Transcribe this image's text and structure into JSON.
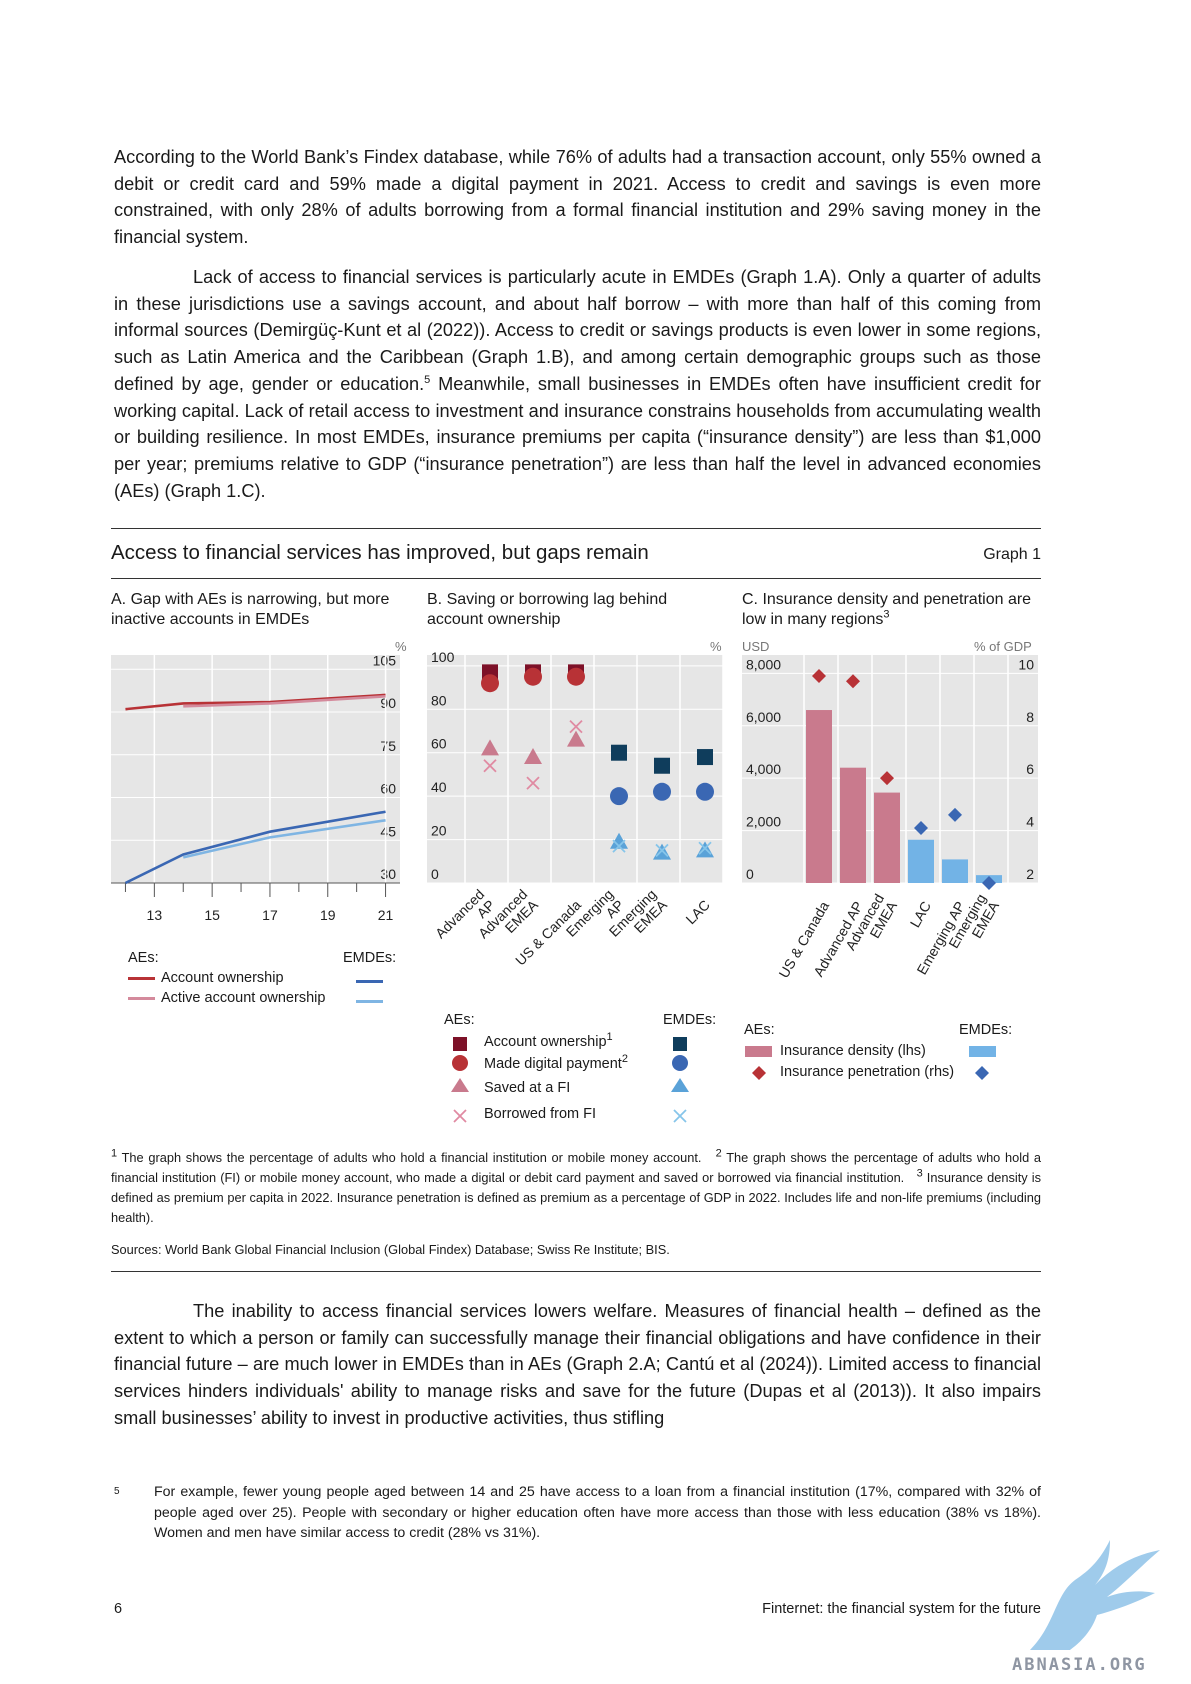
{
  "paragraphs": {
    "p1": "According to the World Bank’s Findex database, while 76% of adults had a transaction account, only 55% owned a debit or credit card and 59% made a digital payment in 2021. Access to credit and savings is even more constrained, with only 28% of adults borrowing from a formal financial institution and 29% saving money in the financial system.",
    "p2a": "Lack of access to financial services is particularly acute in EMDEs (Graph 1.A). Only a quarter of adults in these jurisdictions use a savings account, and about half borrow – with more than half of this coming from informal sources (Demirgüç-Kunt et al (2022)). Access to credit or savings products is even lower in some regions, such as Latin America and the Caribbean (Graph 1.B), and among certain demographic groups such as those defined by age, gender or education.",
    "p2_fnref": "5",
    "p2b": " Meanwhile, small businesses in EMDEs often have insufficient credit for working capital. Lack of retail access to investment and insurance constrains households from accumulating wealth or building resilience. In most EMDEs, insurance premiums per capita (“insurance density”) are less than $1,000 per year; premiums relative to GDP (“insurance penetration”) are less than half the level in advanced economies (AEs) (Graph 1.C).",
    "p3": "The inability to access financial services lowers welfare. Measures of financial health – defined as the extent to which a person or family can successfully manage their financial obligations and have confidence in their financial future – are much lower in EMDEs than in AEs (Graph 2.A; Cantú et al (2024)). Limited access to financial services hinders individuals' ability to manage risks and save for the future (Dupas et al (2013)). It also impairs small businesses’ ability to invest in productive activities, thus stifling"
  },
  "graph": {
    "title": "Access to financial services has improved, but gaps remain",
    "number": "Graph 1"
  },
  "panelA": {
    "title": "A. Gap with AEs is narrowing, but more inactive accounts in EMDEs",
    "unit": "%",
    "legend_left": "AEs:",
    "legend_right": "EMDEs:",
    "legend_items": [
      "Account ownership",
      "Active account ownership"
    ]
  },
  "panelB": {
    "title": "B. Saving or borrowing lag behind account ownership",
    "unit": "%",
    "legend_left": "AEs:",
    "legend_right": "EMDEs:",
    "legend_items": [
      "Account ownership",
      "Made digital payment",
      "Saved at a FI",
      "Borrowed from FI"
    ],
    "legend_sups": [
      "1",
      "2"
    ]
  },
  "panelC": {
    "title": "C. Insurance density and penetration are low in many regions",
    "title_sup": "3",
    "unit_left": "USD",
    "unit_right": "% of GDP",
    "legend_left": "AEs:",
    "legend_right": "EMDEs:",
    "legend_items": [
      "Insurance density (lhs)",
      "Insurance penetration (rhs)"
    ]
  },
  "colors": {
    "ae_dark": "#7d1128",
    "ae_mid": "#b83236",
    "ae_light": "#c97a8d",
    "ae_pink": "#e08aa2",
    "emde_dark": "#0f3d5c",
    "emde_mid": "#3a67b3",
    "emde_light": "#5aa2d8",
    "emde_pale": "#86c5ea",
    "panel_bg": "#e6e6e6"
  },
  "chart_data": [
    {
      "type": "line",
      "x": [
        12,
        14,
        17,
        21
      ],
      "xticks": [
        "13",
        "15",
        "17",
        "19",
        "21"
      ],
      "xlim": [
        11.5,
        21.5
      ],
      "ylim": [
        30,
        110
      ],
      "yticks": [
        "30",
        "45",
        "60",
        "75",
        "90",
        "105"
      ],
      "series": [
        {
          "name": "Account ownership",
          "group": "AEs",
          "values": [
            91,
            93,
            93.5,
            96
          ]
        },
        {
          "name": "Active account ownership",
          "group": "AEs",
          "values": [
            null,
            92,
            93,
            95.5
          ]
        },
        {
          "name": "Account ownership",
          "group": "EMDEs",
          "values": [
            30,
            40,
            48,
            55
          ]
        },
        {
          "name": "Active account ownership",
          "group": "EMDEs",
          "values": [
            null,
            39,
            46,
            52
          ]
        }
      ]
    },
    {
      "type": "scatter",
      "categories": [
        "Advanced AP",
        "Advanced EMEA",
        "US & Canada",
        "Emerging AP",
        "Emerging EMEA",
        "LAC"
      ],
      "ylim": [
        0,
        105
      ],
      "yticks": [
        "0",
        "20",
        "40",
        "60",
        "80",
        "100"
      ],
      "series": [
        {
          "name": "Account ownership",
          "values": [
            97,
            97,
            97,
            60,
            54,
            58
          ]
        },
        {
          "name": "Made digital payment",
          "values": [
            92,
            95,
            95,
            40,
            42,
            42
          ]
        },
        {
          "name": "Saved at a FI",
          "values": [
            62,
            58,
            66,
            19,
            14,
            15
          ]
        },
        {
          "name": "Borrowed from FI",
          "values": [
            54,
            46,
            72,
            17,
            15,
            16
          ]
        }
      ]
    },
    {
      "type": "bar",
      "categories": [
        "US & Canada",
        "Advanced AP",
        "Advanced EMEA",
        "LAC",
        "Emerging AP",
        "Emerging EMEA"
      ],
      "ylim_left": [
        0,
        8700
      ],
      "ylim_right": [
        2,
        10.7
      ],
      "yticks_left": [
        "0",
        "2,000",
        "4,000",
        "6,000",
        "8,000"
      ],
      "yticks_right": [
        "2",
        "4",
        "6",
        "8",
        "10"
      ],
      "series": [
        {
          "name": "Insurance density (lhs)",
          "axis": "left",
          "values": [
            6600,
            4400,
            3450,
            1650,
            900,
            300
          ]
        },
        {
          "name": "Insurance penetration (rhs)",
          "axis": "right",
          "values": [
            9.9,
            9.7,
            6.0,
            4.1,
            4.6,
            2.0
          ]
        }
      ]
    }
  ],
  "notes": {
    "n1_mark": "1",
    "n1": "The graph shows the percentage of adults who hold a financial institution or mobile money account.",
    "n2_mark": "2",
    "n2": "The graph shows the percentage of adults who hold a financial institution (FI) or mobile money account, who made a digital or debit card payment and saved or borrowed via financial institution.",
    "n3_mark": "3",
    "n3": "Insurance density is defined as premium per capita in 2022. Insurance penetration is defined as premium as a percentage of GDP in 2022. Includes life and non-life premiums (including health).",
    "sources": "Sources: World Bank Global Financial Inclusion (Global Findex) Database; Swiss Re Institute; BIS."
  },
  "footnote": {
    "mark": "5",
    "text": "For example, fewer young people aged between 14 and 25 have access to a loan from a financial institution (17%, compared with 32% of people aged over 25). People with secondary or higher education often have more access than those with less education (38% vs 18%). Women and men have similar access to credit (28% vs 31%)."
  },
  "footer": {
    "page": "6",
    "running": "Finternet: the financial system for the future"
  },
  "watermark": "ABNASIA.ORG"
}
